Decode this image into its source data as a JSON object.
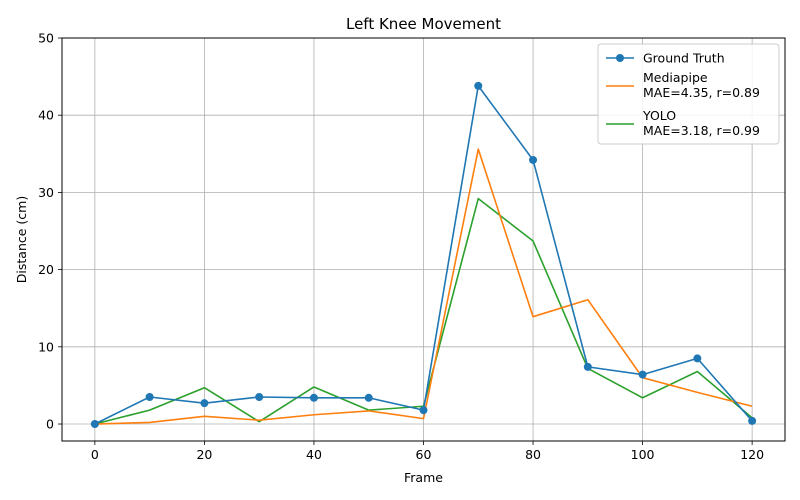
{
  "chart_data": {
    "type": "line",
    "title": "Left Knee Movement",
    "xlabel": "Frame",
    "ylabel": "Distance (cm)",
    "xlim": [
      -6,
      126
    ],
    "ylim": [
      -2.2,
      50
    ],
    "xticks": [
      0,
      20,
      40,
      60,
      80,
      100,
      120
    ],
    "yticks": [
      0,
      10,
      20,
      30,
      40,
      50
    ],
    "grid": true,
    "legend_position": "top-right",
    "x": [
      0,
      10,
      20,
      30,
      40,
      50,
      60,
      70,
      80,
      90,
      100,
      110,
      120
    ],
    "series": [
      {
        "name": "Ground Truth",
        "color": "#1f77b4",
        "marker": "circle",
        "values": [
          0.0,
          3.5,
          2.7,
          3.5,
          3.4,
          3.4,
          1.8,
          43.8,
          34.2,
          7.4,
          6.4,
          8.5,
          0.4
        ]
      },
      {
        "name": "Mediapipe",
        "name_line2": "MAE=4.35, r=0.89",
        "color": "#ff7f0e",
        "marker": "none",
        "values": [
          0.0,
          0.2,
          1.0,
          0.5,
          1.2,
          1.7,
          0.7,
          35.6,
          13.9,
          16.1,
          6.0,
          4.1,
          2.3
        ]
      },
      {
        "name": "YOLO",
        "name_line2": "MAE=3.18, r=0.99",
        "color": "#2ca02c",
        "marker": "none",
        "values": [
          0.0,
          1.8,
          4.7,
          0.3,
          4.8,
          1.8,
          2.3,
          29.2,
          23.7,
          7.2,
          3.4,
          6.8,
          0.8
        ]
      }
    ]
  }
}
